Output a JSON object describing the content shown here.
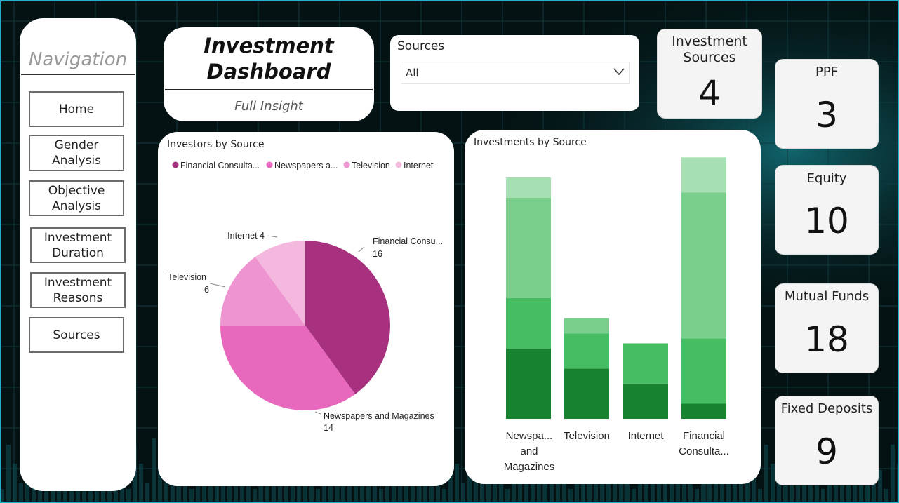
{
  "navigation": {
    "title": "Navigation",
    "items": [
      {
        "label": "Home"
      },
      {
        "label": "Gender Analysis"
      },
      {
        "label": "Objective Analysis"
      },
      {
        "label": "Investment Duration"
      },
      {
        "label": "Investment Reasons"
      },
      {
        "label": "Sources"
      }
    ]
  },
  "header": {
    "title_line1": "Investment",
    "title_line2": "Dashboard",
    "subtitle": "Full Insight"
  },
  "slicer": {
    "label": "Sources",
    "selected": "All",
    "icon": "chevron-down-icon"
  },
  "kpis": {
    "investment_sources": {
      "label_line1": "Investment",
      "label_line2": "Sources",
      "value": "4"
    },
    "ppf": {
      "label": "PPF",
      "value": "3"
    },
    "equity": {
      "label": "Equity",
      "value": "10"
    },
    "mutual_funds": {
      "label": "Mutual Funds",
      "value": "18"
    },
    "fixed_deposits": {
      "label": "Fixed Deposits",
      "value": "9"
    }
  },
  "colors": {
    "accent": "#1fb6c4",
    "pie": [
      "#a8317f",
      "#e868bd",
      "#ee94d0",
      "#f4b8df"
    ],
    "bar": [
      "#17832f",
      "#46bc63",
      "#7acf8d",
      "#a6e0b2"
    ]
  },
  "chart_data": [
    {
      "type": "pie",
      "title": "Investors by Source",
      "legend_position": "top-left",
      "legend_labels": [
        "Financial Consulta...",
        "Newspapers a...",
        "Television",
        "Internet"
      ],
      "slices": [
        {
          "name": "Financial Consultants",
          "label": "Financial Consu...",
          "value": 16
        },
        {
          "name": "Newspapers and Magazines",
          "label": "Newspapers and Magazines",
          "value": 14
        },
        {
          "name": "Television",
          "label": "Television",
          "value": 6
        },
        {
          "name": "Internet",
          "label": "Internet",
          "value": 4
        }
      ]
    },
    {
      "type": "bar",
      "stacked": true,
      "title": "Investments by Source",
      "categories": [
        [
          "Newspa...",
          "and",
          "Magazines"
        ],
        [
          "Television"
        ],
        [
          "Internet"
        ],
        [
          "Financial",
          "Consulta..."
        ]
      ],
      "segments": [
        [
          7,
          5,
          10,
          2
        ],
        [
          5,
          3.5,
          1.5,
          0
        ],
        [
          3.5,
          4,
          0,
          0
        ],
        [
          1.5,
          6.5,
          14.5,
          3.5
        ]
      ],
      "ylim": [
        0,
        27
      ]
    }
  ]
}
